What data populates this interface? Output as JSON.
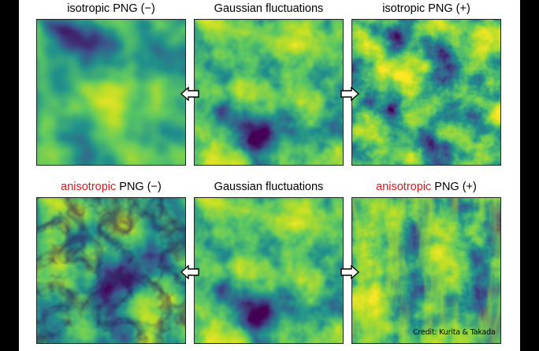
{
  "rows": [
    {
      "titles": {
        "left": {
          "accent": "",
          "text": "isotropic PNG (−)"
        },
        "middle": {
          "accent": "",
          "text": "Gaussian fluctuations"
        },
        "right": {
          "accent": "",
          "text": "isotropic PNG (+)"
        }
      }
    },
    {
      "titles": {
        "left": {
          "accent": "anisotropic",
          "text": " PNG (−)"
        },
        "middle": {
          "accent": "",
          "text": "Gaussian fluctuations"
        },
        "right": {
          "accent": "anisotropic",
          "text": " PNG (+)"
        }
      }
    }
  ],
  "credit": "Credit: Kurita & Takada",
  "colors": {
    "accent_red": "#e8141c",
    "colormap": [
      "#440154",
      "#3b528b",
      "#21918c",
      "#5ec962",
      "#b8de29",
      "#fde725"
    ]
  },
  "icons": {
    "arrow_left": "arrow-left-icon",
    "arrow_right": "arrow-right-icon"
  }
}
